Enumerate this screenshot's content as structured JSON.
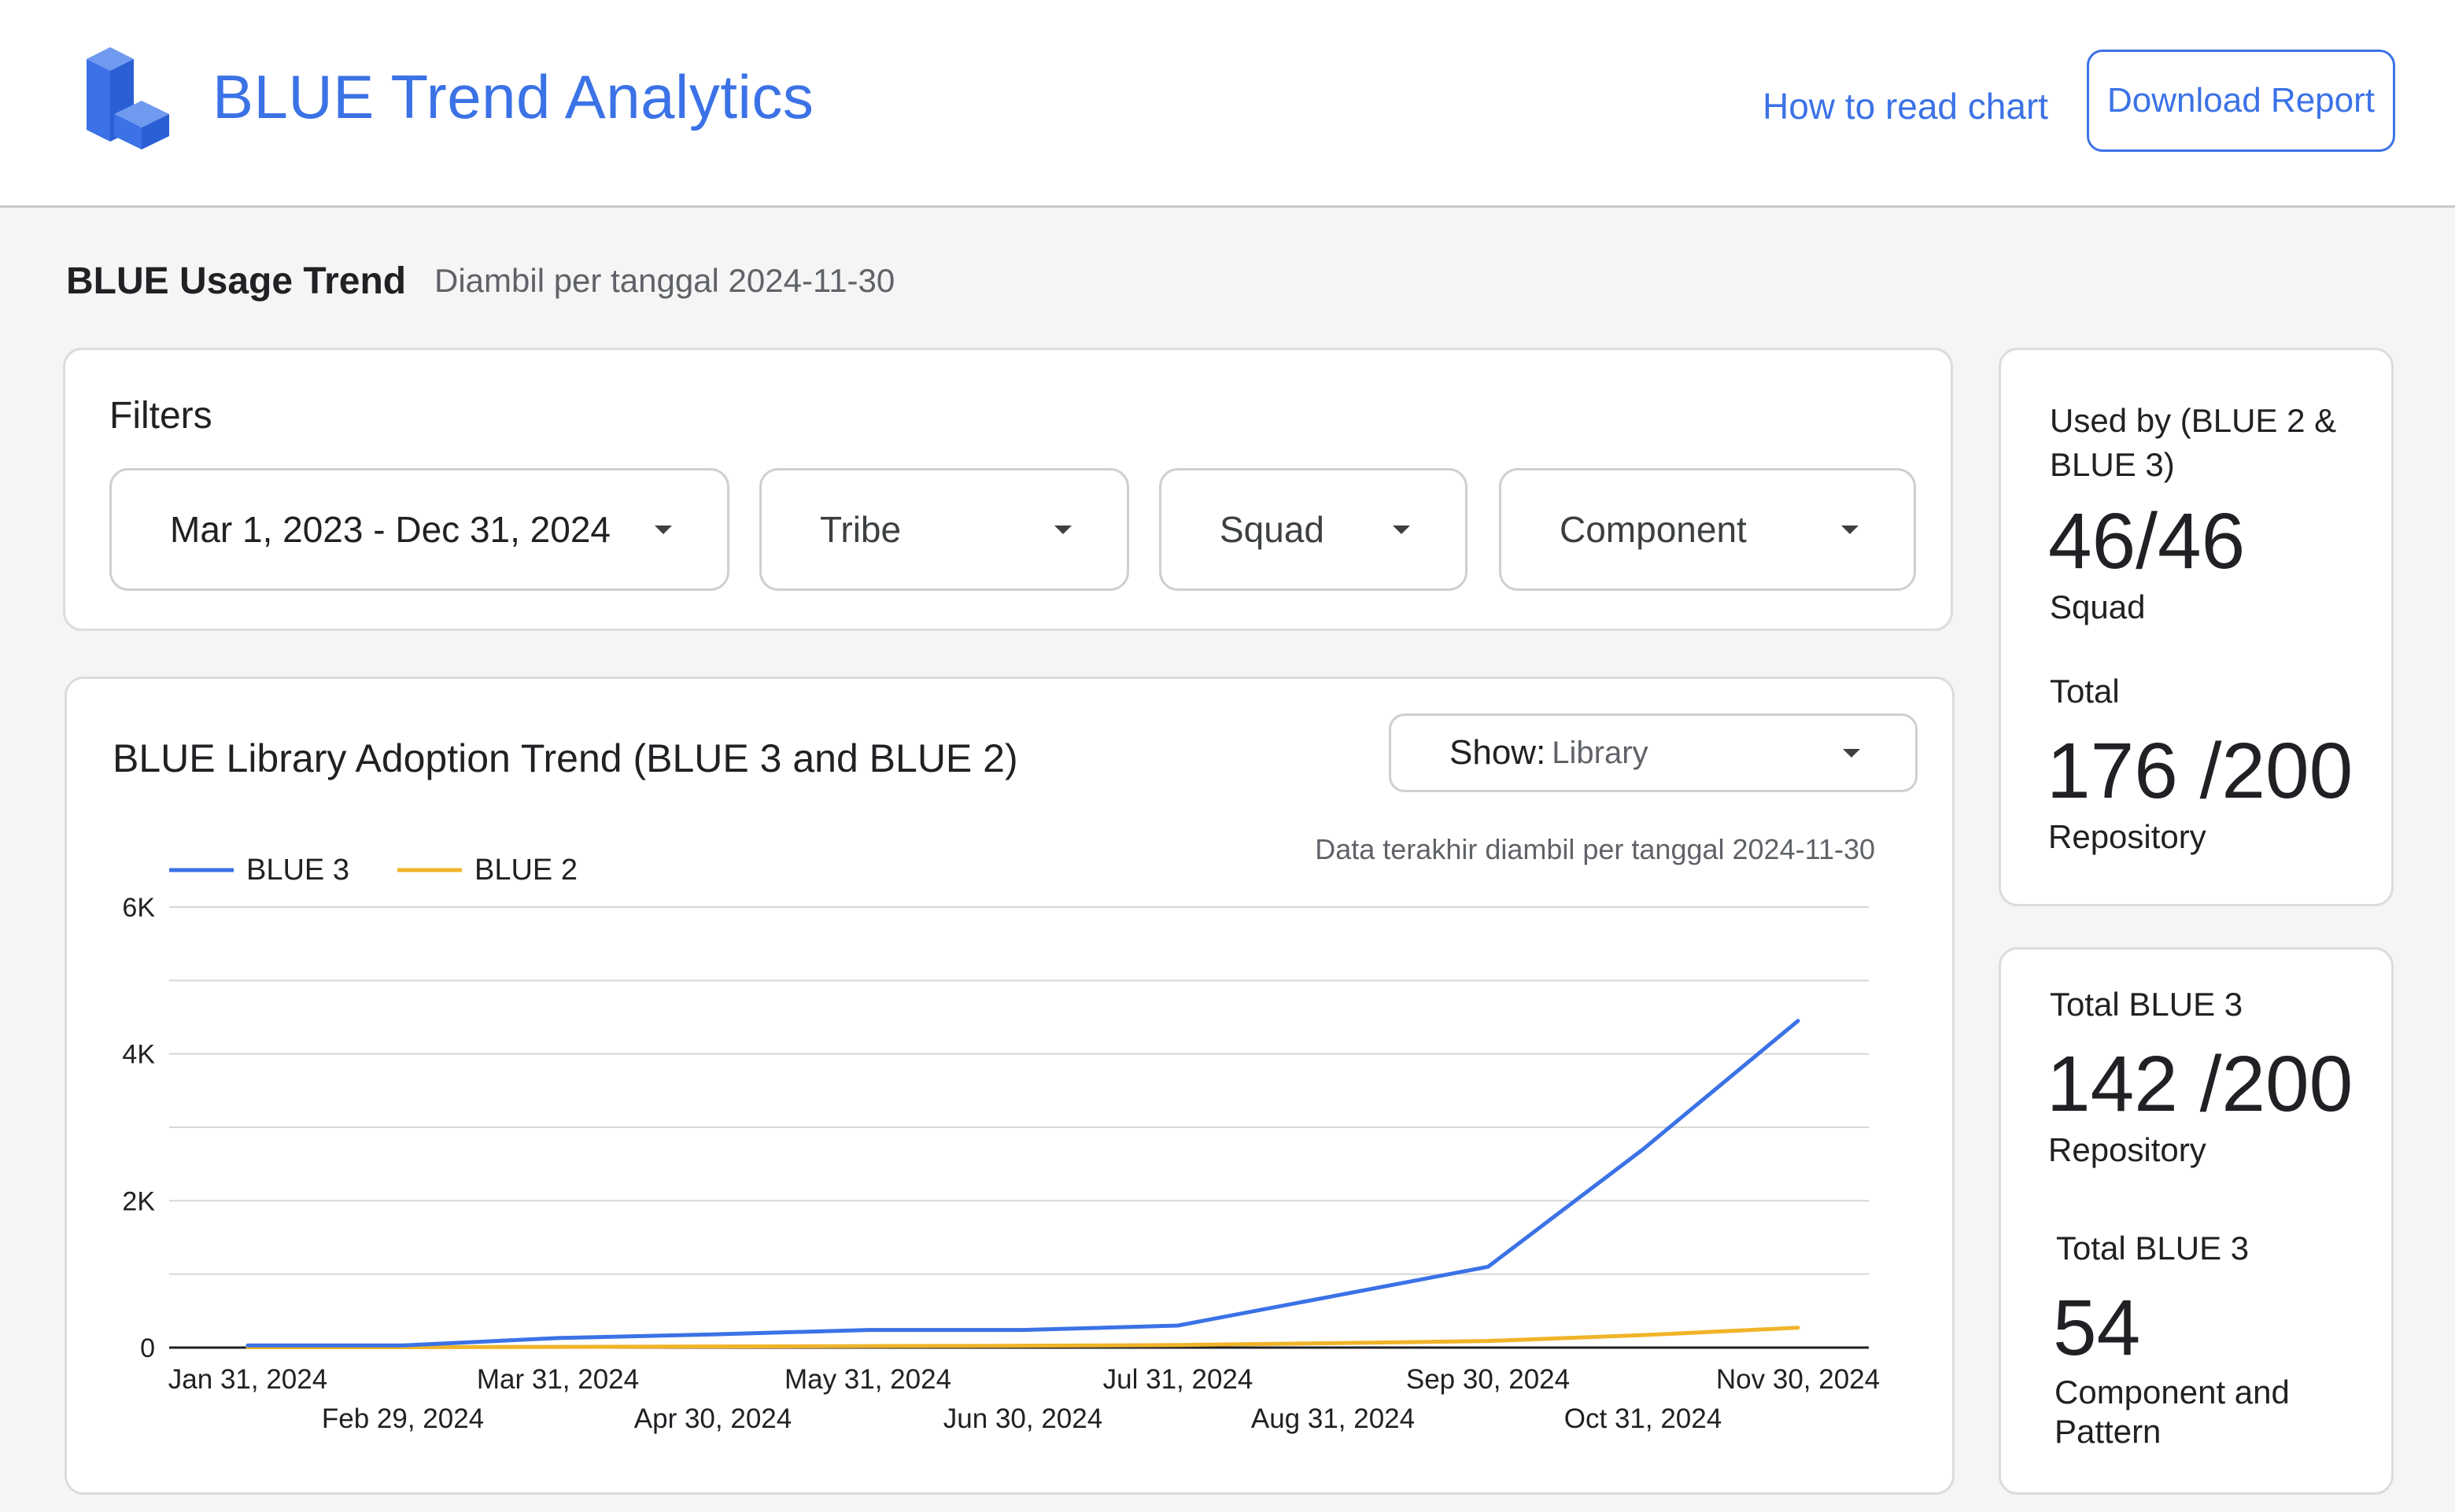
{
  "header": {
    "app_title": "BLUE Trend Analytics",
    "help_link": "How to read chart",
    "download_button": "Download Report",
    "logo_icon": "stacked-cubes-logo-icon",
    "brand_color": "#3b72e6"
  },
  "section": {
    "title": "BLUE Usage Trend",
    "subtitle": "Diambil per tanggal 2024-11-30"
  },
  "filters": {
    "title": "Filters",
    "date_range": "Mar 1, 2023 - Dec 31, 2024",
    "tribe": "Tribe",
    "squad": "Squad",
    "component": "Component"
  },
  "chart_card": {
    "title": "BLUE Library Adoption Trend (BLUE 3 and BLUE 2)",
    "show_label": "Show:",
    "show_value": "Library",
    "note": "Data terakhir diambil per tanggal 2024-11-30"
  },
  "chart_data": {
    "type": "line",
    "title": "BLUE Library Adoption Trend (BLUE 3 and BLUE 2)",
    "xlabel": "",
    "ylabel": "",
    "x": [
      "Jan 31, 2024",
      "Feb 29, 2024",
      "Mar 31, 2024",
      "Apr 30, 2024",
      "May 31, 2024",
      "Jun 30, 2024",
      "Jul 31, 2024",
      "Aug 31, 2024",
      "Sep 30, 2024",
      "Oct 31, 2024",
      "Nov 30, 2024"
    ],
    "series": [
      {
        "name": "BLUE 3",
        "color": "#3b72e6",
        "values": [
          30,
          30,
          130,
          180,
          240,
          240,
          300,
          700,
          1100,
          2700,
          4450
        ]
      },
      {
        "name": "BLUE 2",
        "color": "#f0b429",
        "values": [
          5,
          5,
          10,
          15,
          20,
          25,
          35,
          60,
          90,
          170,
          270
        ]
      }
    ],
    "ylim": [
      0,
      6000
    ],
    "y_ticks": [
      0,
      2000,
      4000,
      6000
    ],
    "y_tick_labels": [
      "0",
      "2K",
      "4K",
      "6K"
    ],
    "grid": true,
    "legend": "top-left"
  },
  "stats": {
    "card1": {
      "label": "Used by (BLUE 2 & BLUE 3)",
      "squad_value": "46/46",
      "squad_unit": "Squad",
      "total_label": "Total",
      "repo_value": "176 /200",
      "repo_unit": "Repository"
    },
    "card2": {
      "label": "Total BLUE 3",
      "repo_value": "142 /200",
      "repo_unit": "Repository",
      "label2": "Total BLUE 3",
      "comp_value": "54",
      "comp_unit": "Component and Pattern"
    }
  }
}
